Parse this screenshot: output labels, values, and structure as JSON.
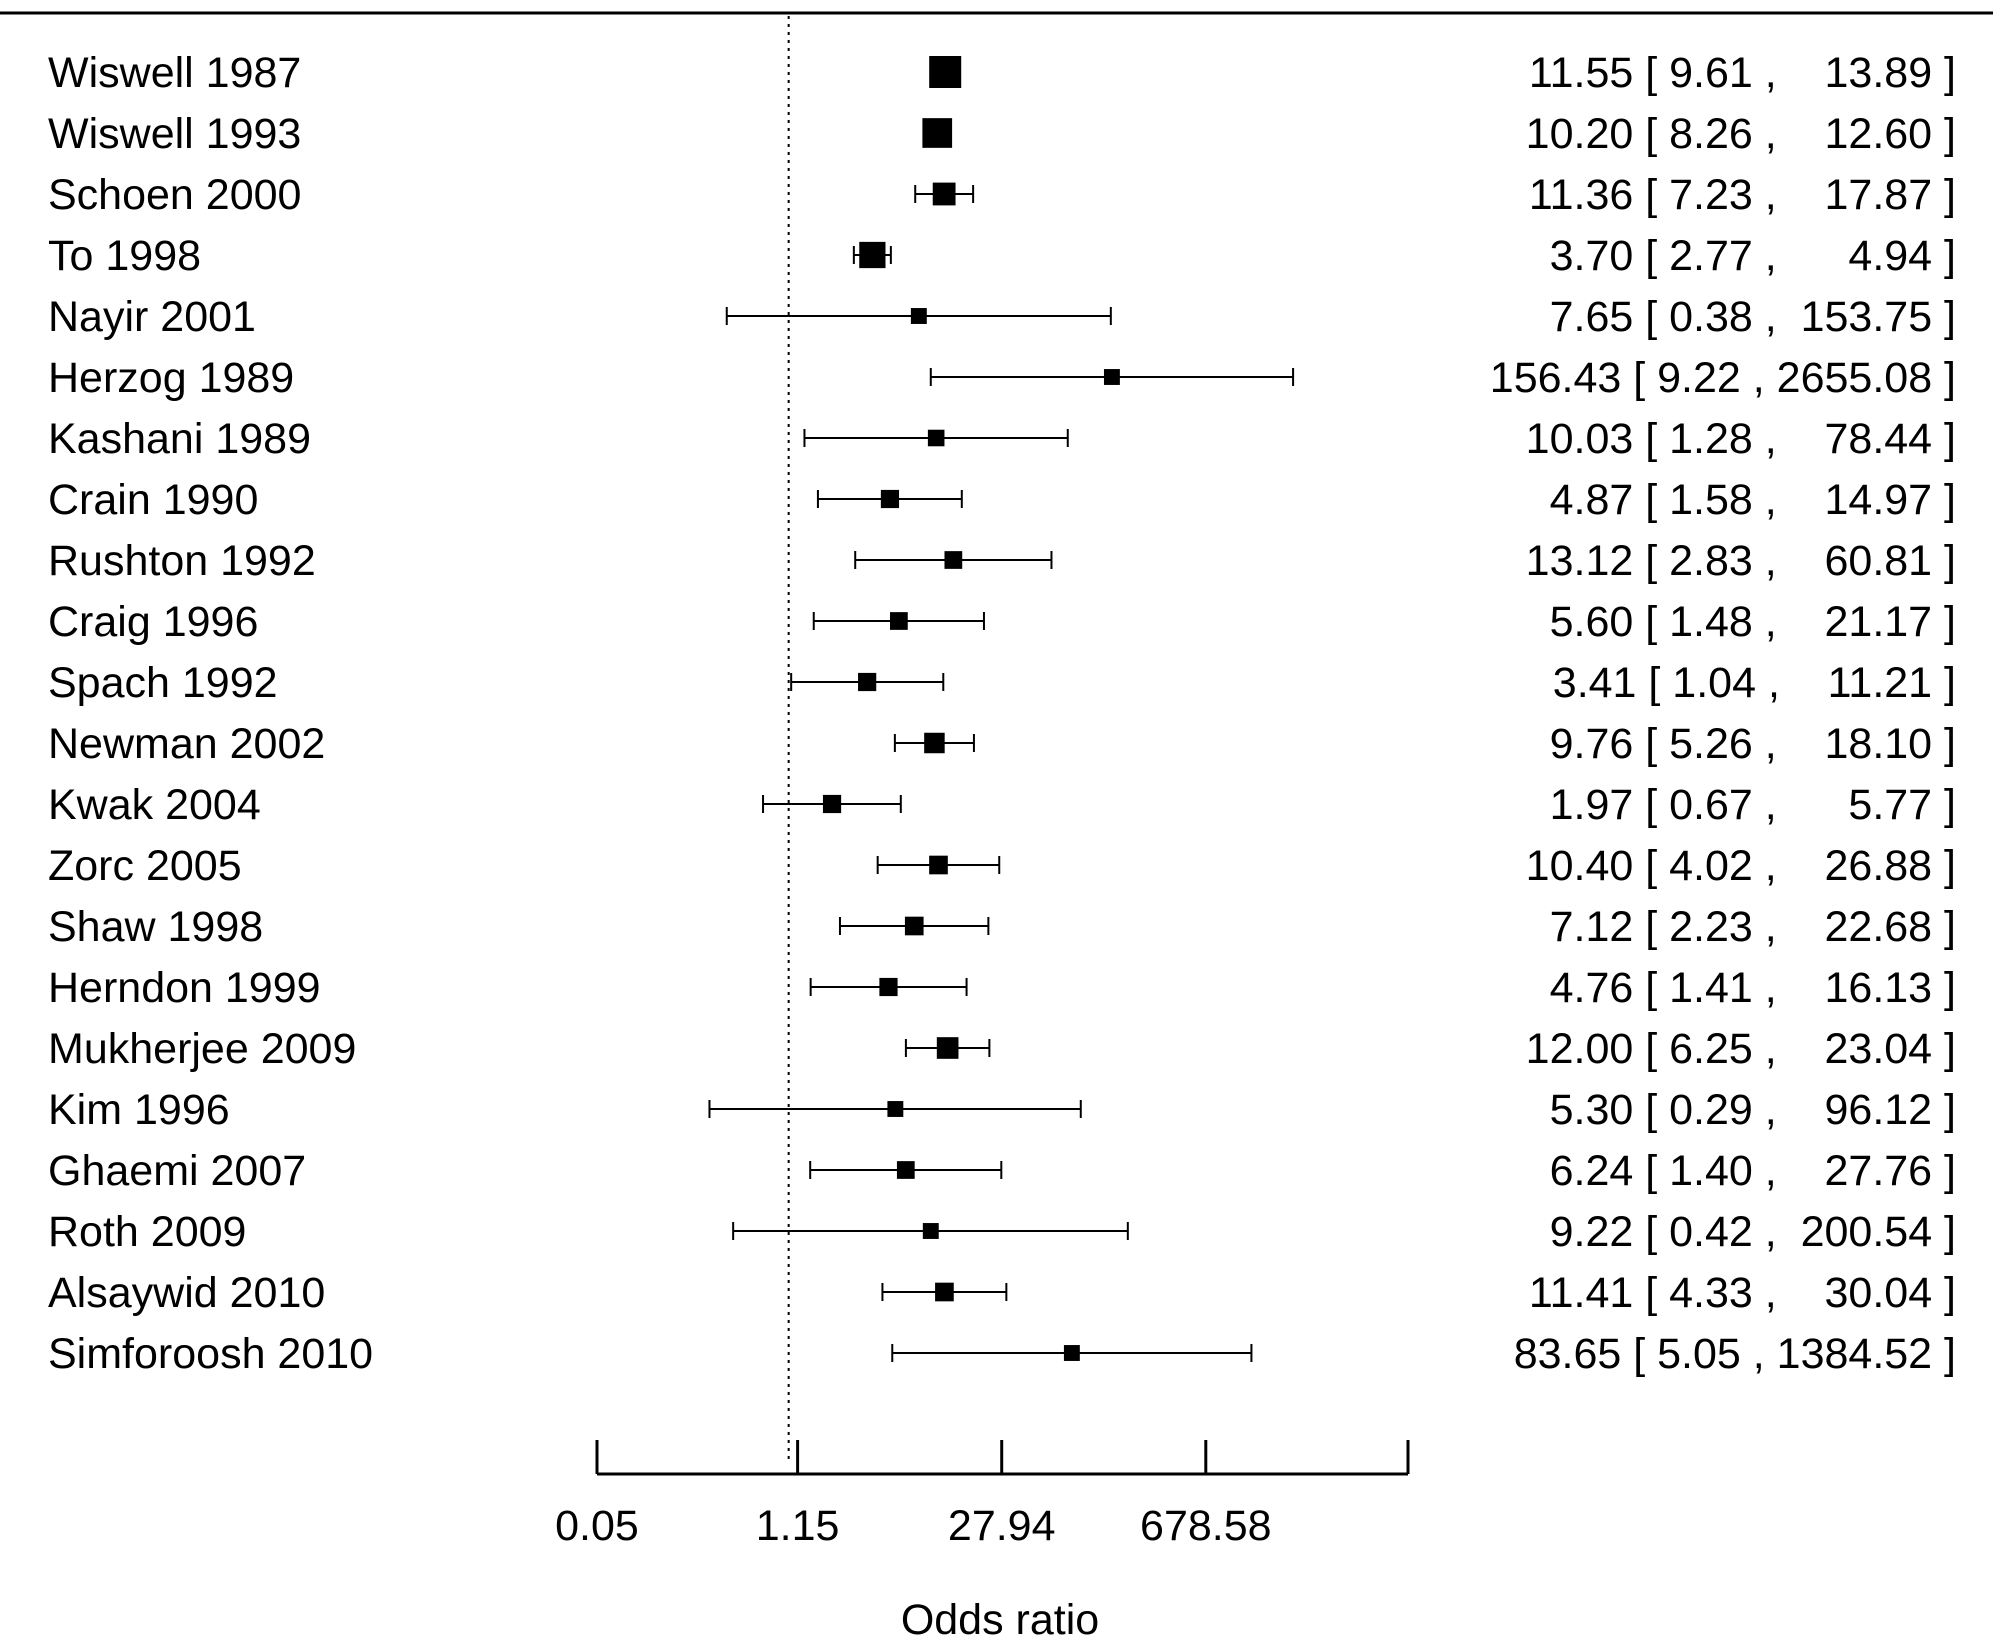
{
  "chart_data": {
    "type": "forest",
    "xscale": "log",
    "xlabel": "Odds ratio",
    "reference_line": 1,
    "xlim": [
      0.05,
      16000
    ],
    "ticks": [
      {
        "value": 0.05,
        "label": "0.05"
      },
      {
        "value": 1.15,
        "label": "1.15"
      },
      {
        "value": 27.94,
        "label": "27.94"
      },
      {
        "value": 678.58,
        "label": "678.58"
      },
      {
        "value": 16000,
        "label": ""
      }
    ],
    "studies": [
      {
        "label": "Wiswell 1987",
        "or": 11.55,
        "lo": 9.61,
        "hi": 13.89,
        "weight": 1.0,
        "ci_text": "11.55 [ 9.61 ,    13.89 ]"
      },
      {
        "label": "Wiswell 1993",
        "or": 10.2,
        "lo": 8.26,
        "hi": 12.6,
        "weight": 0.9,
        "ci_text": "10.20 [ 8.26 ,    12.60 ]"
      },
      {
        "label": "Schoen 2000",
        "or": 11.36,
        "lo": 7.23,
        "hi": 17.87,
        "weight": 0.6,
        "ci_text": "11.36 [ 7.23 ,    17.87 ]"
      },
      {
        "label": "To 1998",
        "or": 3.7,
        "lo": 2.77,
        "hi": 4.94,
        "weight": 0.75,
        "ci_text": "3.70 [ 2.77 ,      4.94 ]"
      },
      {
        "label": "Nayir 2001",
        "or": 7.65,
        "lo": 0.38,
        "hi": 153.75,
        "weight": 0.3,
        "ci_text": "7.65 [ 0.38 ,  153.75 ]"
      },
      {
        "label": "Herzog 1989",
        "or": 156.43,
        "lo": 9.22,
        "hi": 2655.08,
        "weight": 0.3,
        "ci_text": "156.43 [ 9.22 , 2655.08 ]"
      },
      {
        "label": "Kashani 1989",
        "or": 10.03,
        "lo": 1.28,
        "hi": 78.44,
        "weight": 0.33,
        "ci_text": "10.03 [ 1.28 ,    78.44 ]"
      },
      {
        "label": "Crain 1990",
        "or": 4.87,
        "lo": 1.58,
        "hi": 14.97,
        "weight": 0.4,
        "ci_text": "4.87 [ 1.58 ,    14.97 ]"
      },
      {
        "label": "Rushton 1992",
        "or": 13.12,
        "lo": 2.83,
        "hi": 60.81,
        "weight": 0.38,
        "ci_text": "13.12 [ 2.83 ,    60.81 ]"
      },
      {
        "label": "Craig 1996",
        "or": 5.6,
        "lo": 1.48,
        "hi": 21.17,
        "weight": 0.38,
        "ci_text": "5.60 [ 1.48 ,    21.17 ]"
      },
      {
        "label": "Spach 1992",
        "or": 3.41,
        "lo": 1.04,
        "hi": 11.21,
        "weight": 0.4,
        "ci_text": "3.41 [ 1.04 ,    11.21 ]"
      },
      {
        "label": "Newman 2002",
        "or": 9.76,
        "lo": 5.26,
        "hi": 18.1,
        "weight": 0.5,
        "ci_text": "9.76 [ 5.26 ,    18.10 ]"
      },
      {
        "label": "Kwak 2004",
        "or": 1.97,
        "lo": 0.67,
        "hi": 5.77,
        "weight": 0.4,
        "ci_text": "1.97 [ 0.67 ,      5.77 ]"
      },
      {
        "label": "Zorc 2005",
        "or": 10.4,
        "lo": 4.02,
        "hi": 26.88,
        "weight": 0.42,
        "ci_text": "10.40 [ 4.02 ,    26.88 ]"
      },
      {
        "label": "Shaw 1998",
        "or": 7.12,
        "lo": 2.23,
        "hi": 22.68,
        "weight": 0.42,
        "ci_text": "7.12 [ 2.23 ,    22.68 ]"
      },
      {
        "label": "Herndon 1999",
        "or": 4.76,
        "lo": 1.41,
        "hi": 16.13,
        "weight": 0.4,
        "ci_text": "4.76 [ 1.41 ,    16.13 ]"
      },
      {
        "label": "Mukherjee 2009",
        "or": 12.0,
        "lo": 6.25,
        "hi": 23.04,
        "weight": 0.55,
        "ci_text": "12.00 [ 6.25 ,    23.04 ]"
      },
      {
        "label": "Kim 1996",
        "or": 5.3,
        "lo": 0.29,
        "hi": 96.12,
        "weight": 0.3,
        "ci_text": "5.30 [ 0.29 ,    96.12 ]"
      },
      {
        "label": "Ghaemi 2007",
        "or": 6.24,
        "lo": 1.4,
        "hi": 27.76,
        "weight": 0.38,
        "ci_text": "6.24 [ 1.40 ,    27.76 ]"
      },
      {
        "label": "Roth 2009",
        "or": 9.22,
        "lo": 0.42,
        "hi": 200.54,
        "weight": 0.3,
        "ci_text": "9.22 [ 0.42 ,  200.54 ]"
      },
      {
        "label": "Alsaywid 2010",
        "or": 11.41,
        "lo": 4.33,
        "hi": 30.04,
        "weight": 0.42,
        "ci_text": "11.41 [ 4.33 ,    30.04 ]"
      },
      {
        "label": "Simforoosh 2010",
        "or": 83.65,
        "lo": 5.05,
        "hi": 1384.52,
        "weight": 0.3,
        "ci_text": "83.65 [ 5.05 , 1384.52 ]"
      }
    ]
  }
}
